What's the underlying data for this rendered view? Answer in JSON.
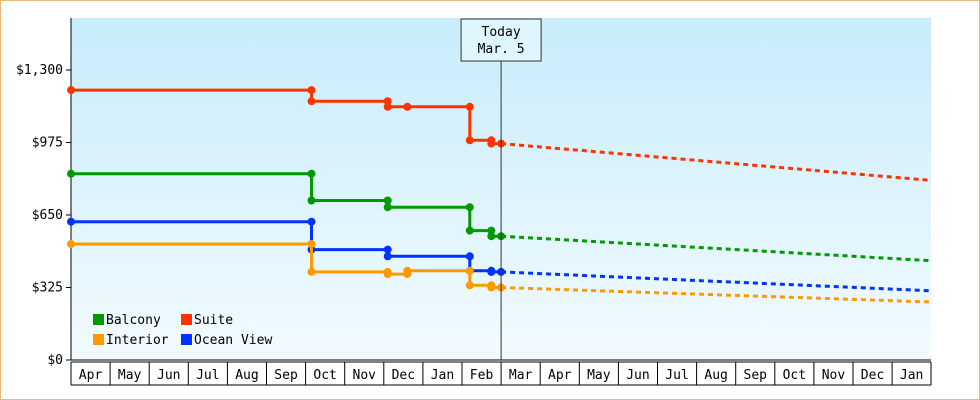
{
  "chart_data": {
    "type": "line",
    "title": "",
    "xlabel": "",
    "ylabel": "",
    "ylim": [
      0,
      1300
    ],
    "yticks": [
      {
        "value": 0,
        "label": "$0"
      },
      {
        "value": 325,
        "label": "$325"
      },
      {
        "value": 650,
        "label": "$650"
      },
      {
        "value": 975,
        "label": "$975"
      },
      {
        "value": 1300,
        "label": "$1,300"
      }
    ],
    "months": [
      "Apr",
      "May",
      "Jun",
      "Jul",
      "Aug",
      "Sep",
      "Oct",
      "Nov",
      "Dec",
      "Jan",
      "Feb",
      "Mar",
      "Apr",
      "May",
      "Jun",
      "Jul",
      "Aug",
      "Sep",
      "Oct",
      "Nov",
      "Dec",
      "Jan"
    ],
    "x_units": "months (0 = start of Apr)",
    "today": {
      "line1": "Today",
      "line2": "Mar. 5",
      "x": 11.0
    },
    "grid": false,
    "legend_position": "bottom-left",
    "series": [
      {
        "name": "Suite",
        "color": "#ff3300",
        "history": [
          [
            0,
            1210
          ],
          [
            6.15,
            1210
          ],
          [
            6.15,
            1160
          ],
          [
            8.1,
            1160
          ],
          [
            8.1,
            1135
          ],
          [
            8.6,
            1135
          ],
          [
            10.2,
            1135
          ],
          [
            10.2,
            985
          ],
          [
            10.75,
            985
          ],
          [
            10.75,
            970
          ],
          [
            11.0,
            970
          ]
        ],
        "history_markers": [
          [
            0,
            1210
          ],
          [
            6.15,
            1210
          ],
          [
            6.15,
            1160
          ],
          [
            8.1,
            1160
          ],
          [
            8.1,
            1135
          ],
          [
            8.6,
            1135
          ],
          [
            10.2,
            1135
          ],
          [
            10.2,
            985
          ],
          [
            10.75,
            985
          ],
          [
            10.75,
            970
          ],
          [
            11.0,
            970
          ]
        ],
        "forecast": [
          [
            11.0,
            970
          ],
          [
            22.0,
            805
          ]
        ]
      },
      {
        "name": "Balcony",
        "color": "#009900",
        "history": [
          [
            0,
            835
          ],
          [
            6.15,
            835
          ],
          [
            6.15,
            715
          ],
          [
            8.1,
            715
          ],
          [
            8.1,
            685
          ],
          [
            10.2,
            685
          ],
          [
            10.2,
            580
          ],
          [
            10.75,
            580
          ],
          [
            10.75,
            555
          ],
          [
            11.0,
            555
          ]
        ],
        "history_markers": [
          [
            0,
            835
          ],
          [
            6.15,
            835
          ],
          [
            6.15,
            715
          ],
          [
            8.1,
            715
          ],
          [
            8.1,
            685
          ],
          [
            10.2,
            685
          ],
          [
            10.2,
            580
          ],
          [
            10.75,
            580
          ],
          [
            10.75,
            555
          ],
          [
            11.0,
            555
          ]
        ],
        "forecast": [
          [
            11.0,
            555
          ],
          [
            22.0,
            445
          ]
        ]
      },
      {
        "name": "Ocean View",
        "color": "#0033ff",
        "history": [
          [
            0,
            620
          ],
          [
            6.15,
            620
          ],
          [
            6.15,
            495
          ],
          [
            8.1,
            495
          ],
          [
            8.1,
            465
          ],
          [
            10.2,
            465
          ],
          [
            10.2,
            400
          ],
          [
            10.75,
            400
          ],
          [
            10.75,
            395
          ],
          [
            11.0,
            395
          ]
        ],
        "history_markers": [
          [
            0,
            620
          ],
          [
            6.15,
            620
          ],
          [
            6.15,
            495
          ],
          [
            8.1,
            495
          ],
          [
            8.1,
            465
          ],
          [
            10.2,
            465
          ],
          [
            10.2,
            400
          ],
          [
            10.75,
            400
          ],
          [
            10.75,
            395
          ],
          [
            11.0,
            395
          ]
        ],
        "forecast": [
          [
            11.0,
            395
          ],
          [
            22.0,
            310
          ]
        ]
      },
      {
        "name": "Interior",
        "color": "#ff9900",
        "history": [
          [
            0,
            520
          ],
          [
            6.15,
            520
          ],
          [
            6.15,
            395
          ],
          [
            8.1,
            395
          ],
          [
            8.1,
            385
          ],
          [
            8.6,
            385
          ],
          [
            8.6,
            400
          ],
          [
            10.2,
            400
          ],
          [
            10.2,
            335
          ],
          [
            10.75,
            335
          ],
          [
            10.75,
            325
          ],
          [
            11.0,
            325
          ]
        ],
        "history_markers": [
          [
            0,
            520
          ],
          [
            6.15,
            520
          ],
          [
            6.15,
            395
          ],
          [
            8.1,
            395
          ],
          [
            8.1,
            385
          ],
          [
            8.6,
            385
          ],
          [
            8.6,
            400
          ],
          [
            10.2,
            400
          ],
          [
            10.2,
            335
          ],
          [
            10.75,
            335
          ],
          [
            10.75,
            325
          ],
          [
            11.0,
            325
          ]
        ],
        "forecast": [
          [
            11.0,
            325
          ],
          [
            22.0,
            260
          ]
        ]
      }
    ],
    "legend": [
      {
        "name": "Balcony",
        "color": "#009900"
      },
      {
        "name": "Suite",
        "color": "#ff3300"
      },
      {
        "name": "Interior",
        "color": "#ff9900"
      },
      {
        "name": "Ocean View",
        "color": "#0033ff"
      }
    ]
  }
}
